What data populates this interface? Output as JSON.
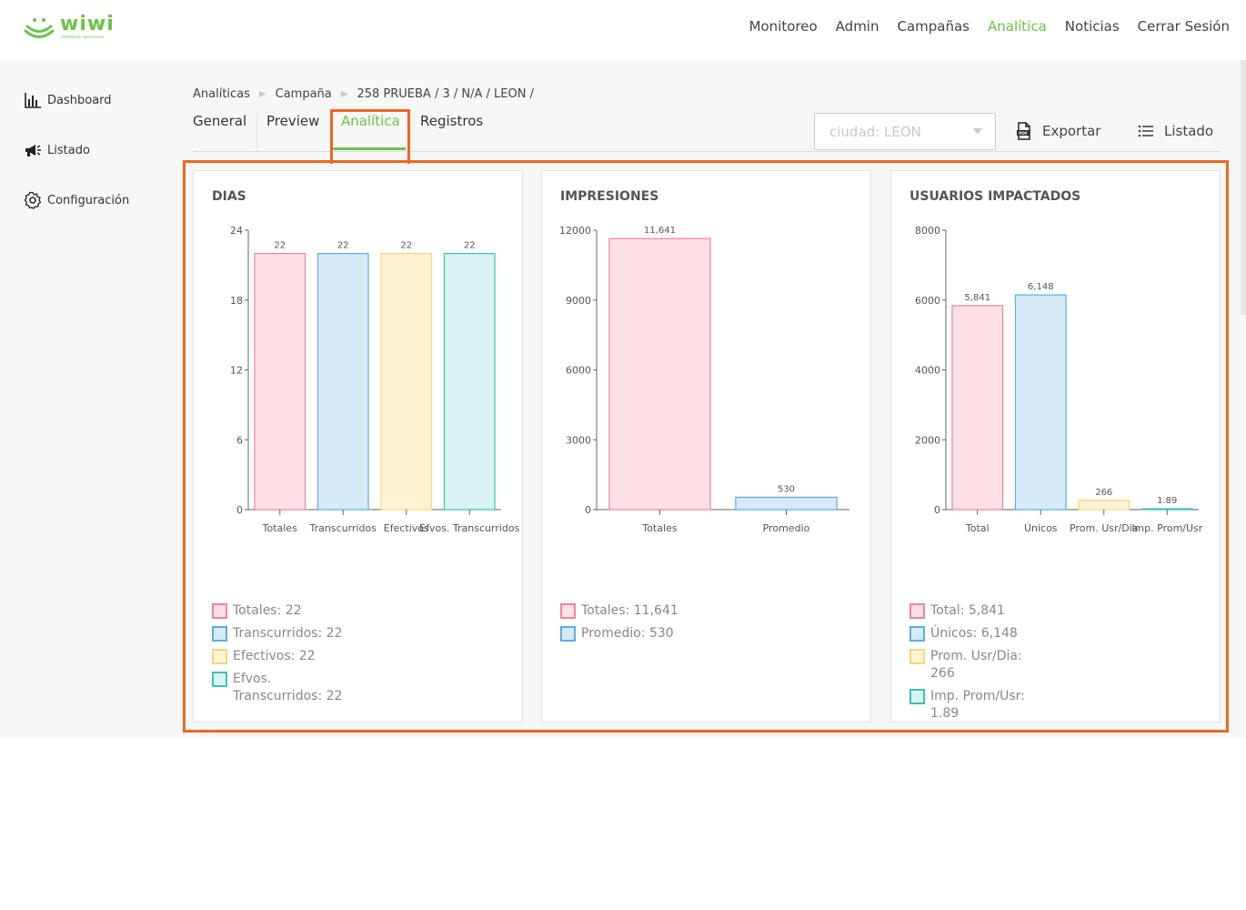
{
  "header": {
    "brand": "wiwi",
    "tagline": "sistema de operaciones",
    "nav": [
      {
        "label": "Monitoreo",
        "active": false
      },
      {
        "label": "Admin",
        "active": false
      },
      {
        "label": "Campañas",
        "active": false
      },
      {
        "label": "Analítica",
        "active": true
      },
      {
        "label": "Noticias",
        "active": false
      },
      {
        "label": "Cerrar Sesión",
        "active": false
      }
    ]
  },
  "sidebar": {
    "items": [
      {
        "label": "Dashboard",
        "icon": "bar-chart-icon"
      },
      {
        "label": "Listado",
        "icon": "megaphone-icon"
      },
      {
        "label": "Configuración",
        "icon": "gear-icon"
      }
    ]
  },
  "breadcrumb": {
    "items": [
      "Analíticas",
      "Campaña",
      "258 PRUEBA / 3 / N/A / LEON /"
    ]
  },
  "tabs": [
    {
      "label": "General",
      "active": false
    },
    {
      "label": "Preview",
      "active": false
    },
    {
      "label": "Analítica",
      "active": true
    },
    {
      "label": "Registros",
      "active": false
    }
  ],
  "filter": {
    "value": "ciudad: LEON"
  },
  "toolbar": {
    "export_label": "Exportar",
    "list_label": "Listado"
  },
  "colors": {
    "accent": "#6cc24a",
    "highlight": "#f26522",
    "pink_fill": "#fde0e6",
    "pink_stroke": "#f0839a",
    "blue_fill": "#d6eaf8",
    "blue_stroke": "#5aaee0",
    "yellow_fill": "#fff3d4",
    "yellow_stroke": "#f7d57a",
    "teal_fill": "#d9f3f2",
    "teal_stroke": "#3fbfb2"
  },
  "chart_data": [
    {
      "type": "bar",
      "title": "DIAS",
      "categories": [
        "Totales",
        "Transcurridos",
        "Efectivos",
        "Efvos. Transcurridos"
      ],
      "values": [
        22,
        22,
        22,
        22
      ],
      "value_labels": [
        "22",
        "22",
        "22",
        "22"
      ],
      "yticks": [
        "0",
        "6",
        "12",
        "18",
        "24"
      ],
      "ylim": [
        0,
        24
      ],
      "legend": [
        "Totales: 22",
        "Transcurridos: 22",
        "Efectivos: 22",
        "Efvos. Transcurridos: 22"
      ],
      "legend_position": "bottom"
    },
    {
      "type": "bar",
      "title": "IMPRESIONES",
      "categories": [
        "Totales",
        "Promedio"
      ],
      "values": [
        11641,
        530
      ],
      "value_labels": [
        "11,641",
        "530"
      ],
      "yticks": [
        "0",
        "3000",
        "6000",
        "9000",
        "12000"
      ],
      "ylim": [
        0,
        12000
      ],
      "legend": [
        "Totales: 11,641",
        "Promedio: 530"
      ],
      "legend_position": "bottom"
    },
    {
      "type": "bar",
      "title": "USUARIOS IMPACTADOS",
      "categories": [
        "Total",
        "Únicos",
        "Prom. Usr/Dia",
        "Imp. Prom/Usr"
      ],
      "values": [
        5841,
        6148,
        266,
        1.89
      ],
      "value_labels": [
        "5,841",
        "6,148",
        "266",
        "1.89"
      ],
      "yticks": [
        "0",
        "2000",
        "4000",
        "6000",
        "8000"
      ],
      "ylim": [
        0,
        8000
      ],
      "legend": [
        "Total: 5,841",
        "Únicos: 6,148",
        "Prom. Usr/Dia: 266",
        "Imp. Prom/Usr: 1.89"
      ],
      "legend_position": "bottom"
    }
  ]
}
